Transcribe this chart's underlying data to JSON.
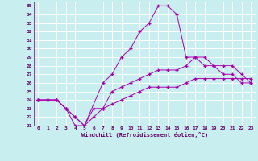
{
  "xlabel": "Windchill (Refroidissement éolien,°C)",
  "bg_color": "#c8eef0",
  "line_color": "#aa00aa",
  "grid_color": "#ffffff",
  "xlim": [
    -0.5,
    23.5
  ],
  "ylim": [
    21,
    35.5
  ],
  "yticks": [
    21,
    22,
    23,
    24,
    25,
    26,
    27,
    28,
    29,
    30,
    31,
    32,
    33,
    34,
    35
  ],
  "xticks": [
    0,
    1,
    2,
    3,
    4,
    5,
    6,
    7,
    8,
    9,
    10,
    11,
    12,
    13,
    14,
    15,
    16,
    17,
    18,
    19,
    20,
    21,
    22,
    23
  ],
  "curve1_x": [
    0,
    1,
    2,
    3,
    4,
    5,
    7,
    8,
    9,
    10,
    11,
    12,
    13,
    14,
    15,
    16,
    17,
    18,
    19,
    20,
    21,
    22,
    23
  ],
  "curve1_y": [
    24,
    24,
    24,
    23,
    21,
    21,
    26,
    27,
    29,
    30,
    32,
    33,
    35,
    35,
    34,
    29,
    29,
    28,
    28,
    27,
    27,
    26,
    26
  ],
  "curve2_x": [
    0,
    1,
    2,
    3,
    4,
    5,
    6,
    7,
    8,
    9,
    10,
    11,
    12,
    13,
    14,
    15,
    16,
    17,
    18,
    19,
    20,
    21,
    22,
    23
  ],
  "curve2_y": [
    24,
    24,
    24,
    23,
    22,
    21,
    23,
    23,
    25,
    25.5,
    26,
    26.5,
    27,
    27.5,
    27.5,
    27.5,
    28,
    29,
    29,
    28,
    28,
    28,
    27,
    26
  ],
  "curve3_x": [
    0,
    1,
    2,
    3,
    4,
    5,
    6,
    7,
    8,
    9,
    10,
    11,
    12,
    13,
    14,
    15,
    16,
    17,
    18,
    19,
    20,
    21,
    22,
    23
  ],
  "curve3_y": [
    24,
    24,
    24,
    23,
    22,
    21,
    22,
    23,
    23.5,
    24,
    24.5,
    25,
    25.5,
    25.5,
    25.5,
    25.5,
    26,
    26.5,
    26.5,
    26.5,
    26.5,
    26.5,
    26.5,
    26.5
  ]
}
